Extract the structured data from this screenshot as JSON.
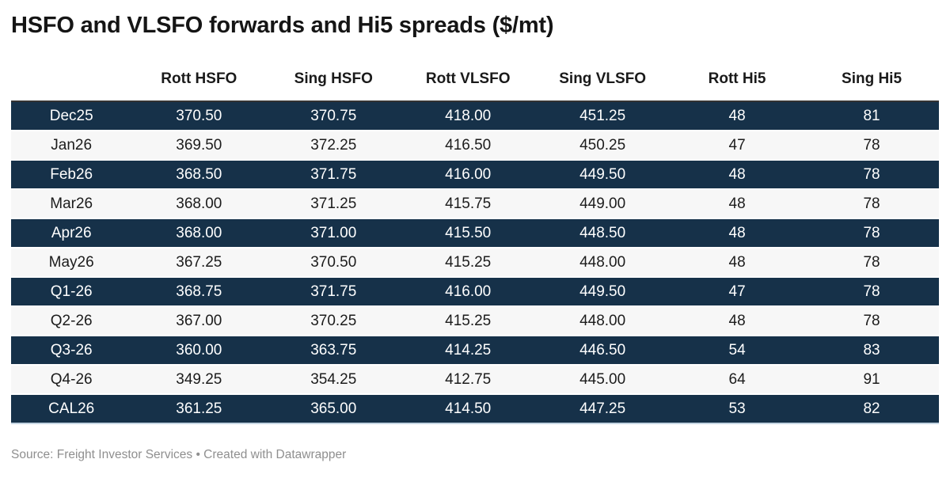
{
  "title": "HSFO and VLSFO forwards and Hi5 spreads ($/mt)",
  "footer": {
    "source": "Source: Freight Investor Services • Created with Datawrapper"
  },
  "colors": {
    "dark_row_bg": "#163149",
    "light_row_bg": "#f7f7f7",
    "dark_row_text": "#ffffff",
    "light_row_text": "#1c1c1c",
    "header_text": "#1a1a1a",
    "header_rule": "#333333",
    "bottom_rule": "#c3d4e1",
    "footer_text": "#8f8f8f"
  },
  "chart_data": {
    "type": "table",
    "title": "HSFO and VLSFO forwards and Hi5 spreads ($/mt)",
    "columns": [
      "",
      "Rott HSFO",
      "Sing HSFO",
      "Rott VLSFO",
      "Sing VLSFO",
      "Rott Hi5",
      "Sing Hi5"
    ],
    "rows": [
      [
        "Dec25",
        "370.50",
        "370.75",
        "418.00",
        "451.25",
        "48",
        "81"
      ],
      [
        "Jan26",
        "369.50",
        "372.25",
        "416.50",
        "450.25",
        "47",
        "78"
      ],
      [
        "Feb26",
        "368.50",
        "371.75",
        "416.00",
        "449.50",
        "48",
        "78"
      ],
      [
        "Mar26",
        "368.00",
        "371.25",
        "415.75",
        "449.00",
        "48",
        "78"
      ],
      [
        "Apr26",
        "368.00",
        "371.00",
        "415.50",
        "448.50",
        "48",
        "78"
      ],
      [
        "May26",
        "367.25",
        "370.50",
        "415.25",
        "448.00",
        "48",
        "78"
      ],
      [
        "Q1-26",
        "368.75",
        "371.75",
        "416.00",
        "449.50",
        "47",
        "78"
      ],
      [
        "Q2-26",
        "367.00",
        "370.25",
        "415.25",
        "448.00",
        "48",
        "78"
      ],
      [
        "Q3-26",
        "360.00",
        "363.75",
        "414.25",
        "446.50",
        "54",
        "83"
      ],
      [
        "Q4-26",
        "349.25",
        "354.25",
        "412.75",
        "445.00",
        "64",
        "91"
      ],
      [
        "CAL26",
        "361.25",
        "365.00",
        "414.50",
        "447.25",
        "53",
        "82"
      ]
    ]
  }
}
